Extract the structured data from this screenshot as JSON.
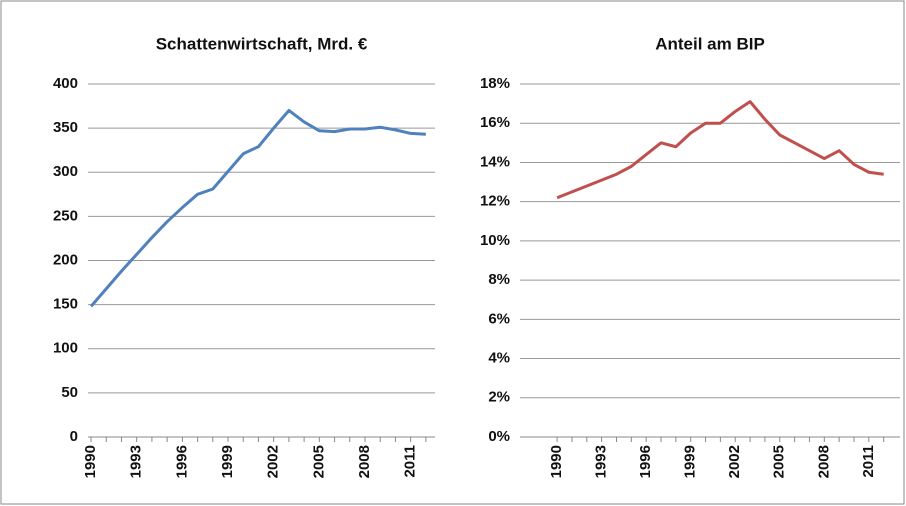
{
  "chart_data": [
    {
      "type": "line",
      "title": "Schattenwirtschaft,  Mrd. €",
      "x": [
        1990,
        1991,
        1992,
        1993,
        1994,
        1995,
        1996,
        1997,
        1998,
        1999,
        2000,
        2001,
        2002,
        2003,
        2004,
        2005,
        2006,
        2007,
        2008,
        2009,
        2010,
        2011,
        2012
      ],
      "series": [
        {
          "color": "#4f81bd",
          "values": [
            148,
            168,
            188,
            207,
            226,
            244,
            260,
            275,
            281,
            301,
            321,
            329,
            350,
            370,
            357,
            347,
            346,
            349,
            349,
            351,
            348,
            344,
            343
          ]
        }
      ],
      "xlim": [
        1989.8,
        2012.6
      ],
      "xticks": [
        1990,
        1993,
        1996,
        1999,
        2002,
        2005,
        2008,
        2011
      ],
      "ylim": [
        0,
        400
      ],
      "yticks": [
        0,
        50,
        100,
        150,
        200,
        250,
        300,
        350,
        400
      ],
      "grid": true
    },
    {
      "type": "line",
      "title": "Anteil am BIP",
      "x": [
        1990,
        1991,
        1992,
        1993,
        1994,
        1995,
        1996,
        1997,
        1998,
        1999,
        2000,
        2001,
        2002,
        2003,
        2004,
        2005,
        2006,
        2007,
        2008,
        2009,
        2010,
        2011,
        2012
      ],
      "series": [
        {
          "color": "#c0504d",
          "values": [
            12.2,
            12.5,
            12.8,
            13.1,
            13.4,
            13.8,
            14.4,
            15.0,
            14.8,
            15.5,
            16.0,
            16.0,
            16.6,
            17.1,
            16.2,
            15.4,
            15.0,
            14.6,
            14.2,
            14.6,
            13.9,
            13.5,
            13.4
          ]
        }
      ],
      "xlim": [
        1987.5,
        2013.1
      ],
      "xticks": [
        1990,
        1993,
        1996,
        1999,
        2002,
        2005,
        2008,
        2011
      ],
      "ylim": [
        0,
        18
      ],
      "yticks": [
        {
          "value": 0,
          "label": "0%"
        },
        {
          "value": 2,
          "label": "2%"
        },
        {
          "value": 4,
          "label": "4%"
        },
        {
          "value": 6,
          "label": "6%"
        },
        {
          "value": 8,
          "label": "8%"
        },
        {
          "value": 10,
          "label": "10%"
        },
        {
          "value": 12,
          "label": "12%"
        },
        {
          "value": 14,
          "label": "14%"
        },
        {
          "value": 16,
          "label": "16%"
        },
        {
          "value": 18,
          "label": "18%"
        }
      ],
      "grid": true
    }
  ]
}
